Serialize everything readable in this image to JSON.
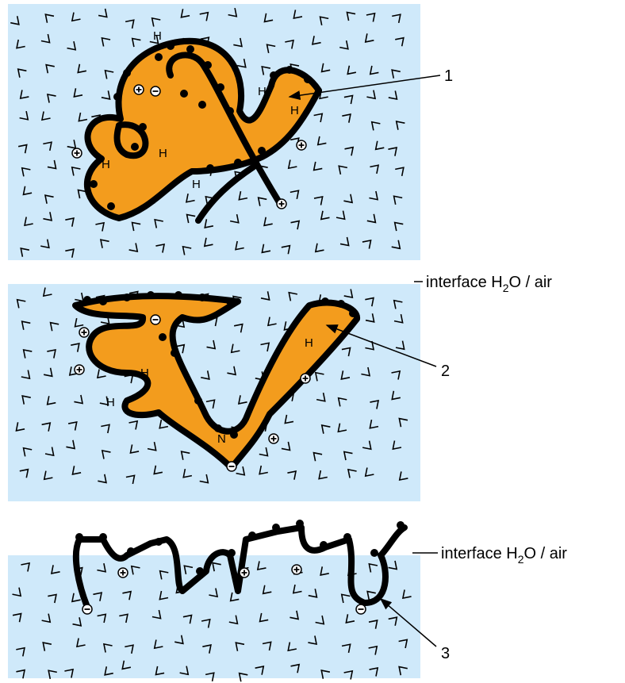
{
  "labels": {
    "one": "1",
    "two": "2",
    "three": "3"
  },
  "interface_label": {
    "before": "interface H",
    "subscript": "2",
    "after": "O / air"
  },
  "panel_1": {
    "atom_labels": [
      "H",
      "H",
      "H",
      "H",
      "H",
      "H"
    ]
  },
  "panel_2": {
    "atom_labels": [
      "H",
      "H",
      "H",
      "N"
    ]
  }
}
